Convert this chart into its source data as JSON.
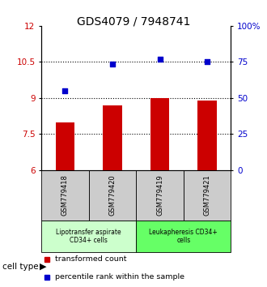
{
  "title": "GDS4079 / 7948741",
  "samples": [
    "GSM779418",
    "GSM779420",
    "GSM779419",
    "GSM779421"
  ],
  "bar_values": [
    8.0,
    8.7,
    9.0,
    8.9
  ],
  "dot_values": [
    9.3,
    10.4,
    10.6,
    10.5
  ],
  "bar_color": "#cc0000",
  "dot_color": "#0000cc",
  "ylim_left": [
    6,
    12
  ],
  "yticks_left": [
    6,
    7.5,
    9,
    10.5,
    12
  ],
  "ytick_labels_left": [
    "6",
    "7.5",
    "9",
    "10.5",
    "12"
  ],
  "yticks_right_pos": [
    6,
    7.5,
    9,
    10.5,
    12
  ],
  "ytick_labels_right": [
    "0",
    "25",
    "50",
    "75",
    "100%"
  ],
  "hlines": [
    7.5,
    9,
    10.5
  ],
  "cell_type_label": "cell type",
  "group1_label": "Lipotransfer aspirate\nCD34+ cells",
  "group2_label": "Leukapheresis CD34+\ncells",
  "group1_color": "#ccffcc",
  "group2_color": "#66ff66",
  "group_bg_color": "#cccccc",
  "legend_bar": "transformed count",
  "legend_dot": "percentile rank within the sample",
  "title_fontsize": 10,
  "tick_fontsize": 7.5
}
